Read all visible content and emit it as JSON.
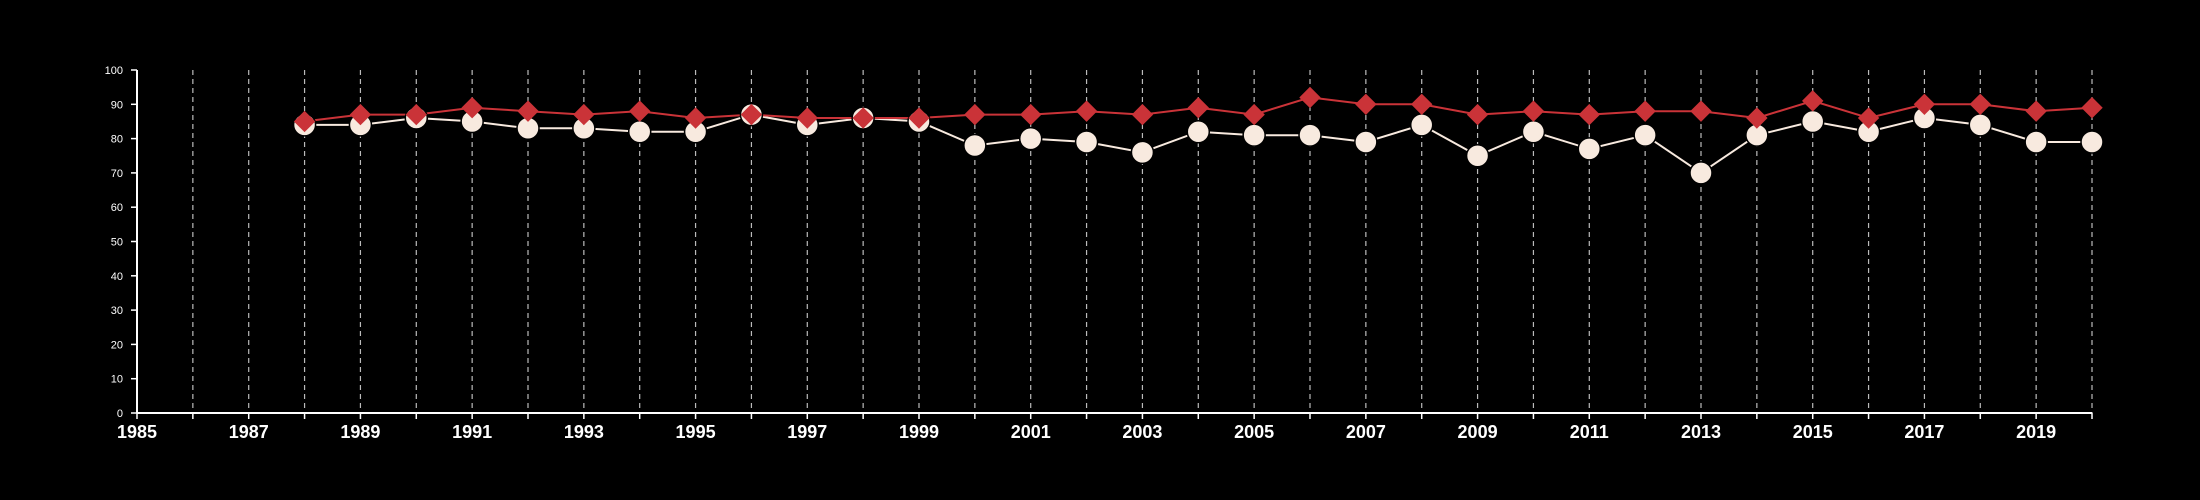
{
  "chart_data": {
    "type": "line",
    "title": "",
    "xlabel": "",
    "ylabel": "",
    "xlim": [
      1985,
      2020
    ],
    "ylim": [
      0,
      100
    ],
    "x_ticks": [
      1985,
      1987,
      1989,
      1991,
      1993,
      1995,
      1997,
      1999,
      2001,
      2003,
      2005,
      2007,
      2009,
      2011,
      2013,
      2015,
      2017,
      2019
    ],
    "y_ticks": [
      0,
      10,
      20,
      30,
      40,
      50,
      60,
      70,
      80,
      90,
      100
    ],
    "grid": "vertical dashed lines at every year",
    "legend": "none",
    "x": [
      1988,
      1989,
      1990,
      1991,
      1992,
      1993,
      1994,
      1995,
      1996,
      1997,
      1998,
      1999,
      2000,
      2001,
      2002,
      2003,
      2004,
      2005,
      2006,
      2007,
      2008,
      2009,
      2010,
      2011,
      2012,
      2013,
      2014,
      2015,
      2016,
      2017,
      2018,
      2019,
      2020
    ],
    "series": [
      {
        "color": "#ca3338",
        "marker": "diamond",
        "values": [
          85,
          87,
          87,
          89,
          88,
          87,
          88,
          86,
          87,
          86,
          86,
          86,
          87,
          87,
          88,
          87,
          89,
          87,
          92,
          90,
          90,
          87,
          88,
          87,
          88,
          88,
          86,
          91,
          86,
          90,
          90,
          88,
          89
        ]
      },
      {
        "color": "#f8eadf",
        "marker": "circle",
        "values": [
          84,
          84,
          86,
          85,
          83,
          83,
          82,
          82,
          87,
          84,
          86,
          85,
          78,
          80,
          79,
          76,
          82,
          81,
          81,
          79,
          84,
          75,
          82,
          77,
          81,
          70,
          81,
          85,
          82,
          86,
          84,
          79,
          79
        ]
      }
    ],
    "colors": {
      "background": "#000000",
      "axis": "#ffffff",
      "grid": "#bbbbbb"
    }
  }
}
